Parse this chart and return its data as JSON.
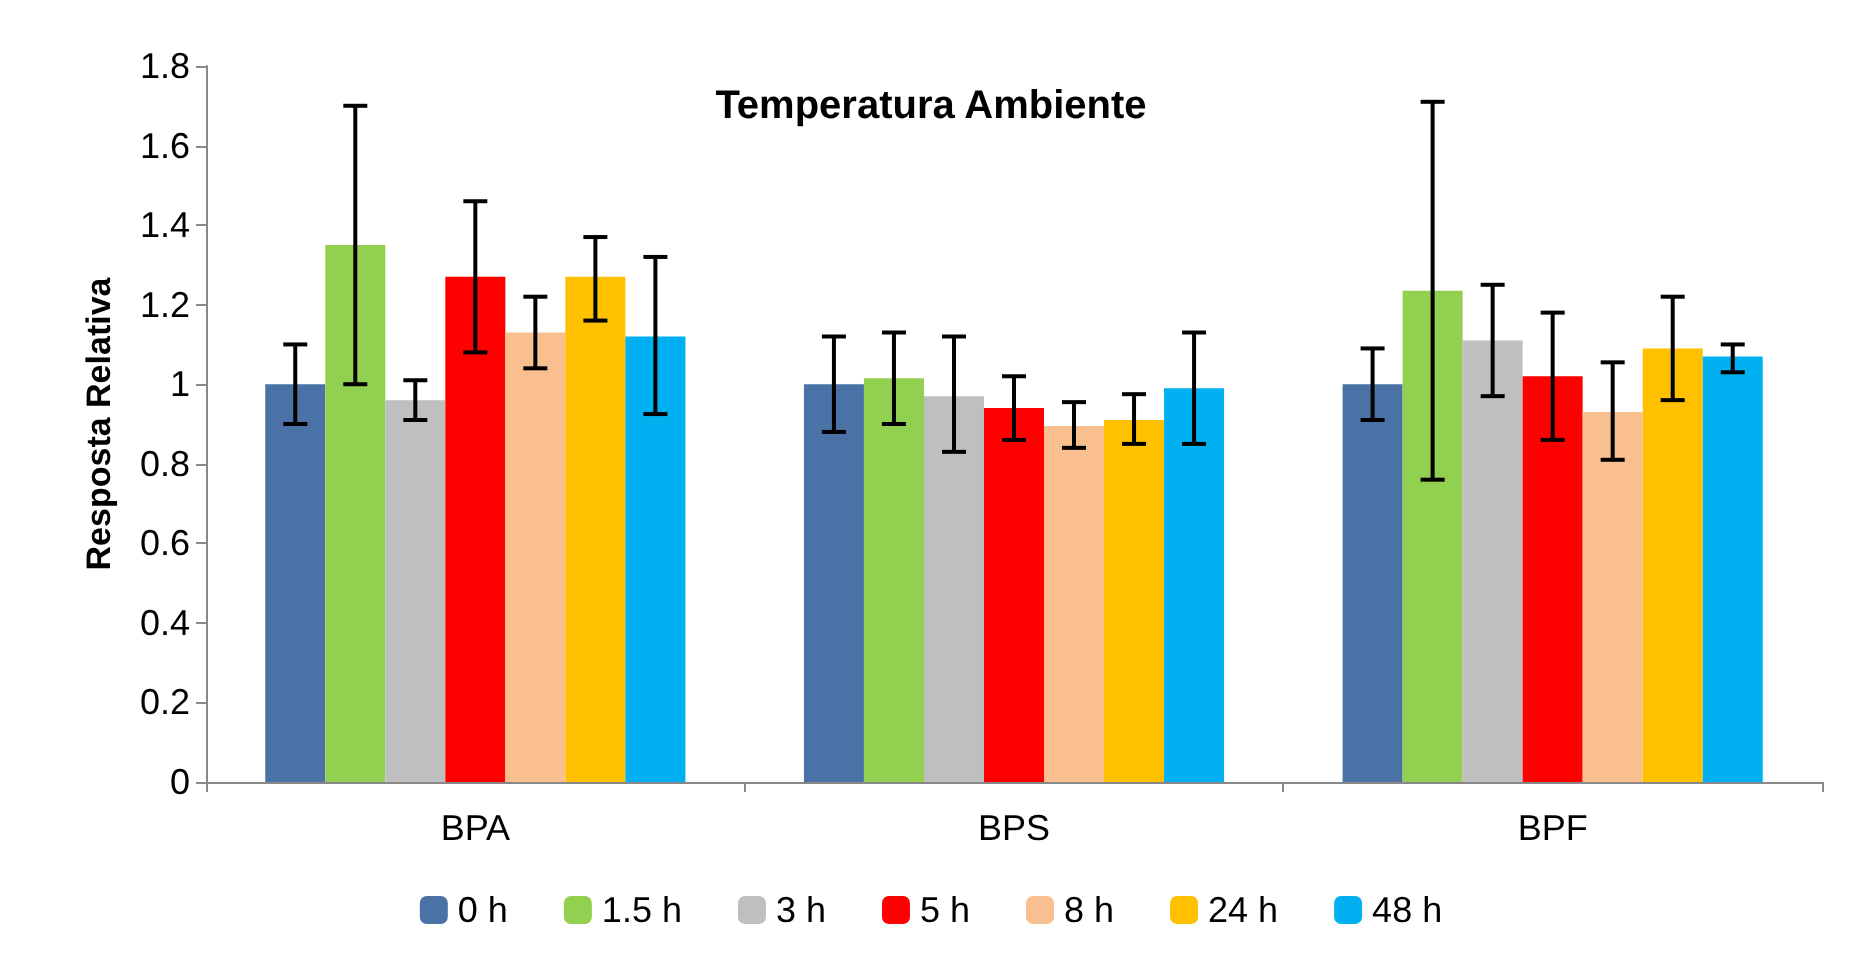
{
  "chart_data": {
    "type": "bar",
    "title": "Temperatura Ambiente",
    "ylabel": "Resposta Relativa",
    "categories": [
      "BPA",
      "BPS",
      "BPF"
    ],
    "series": [
      {
        "name": "0 h",
        "color": "#4a72a6",
        "values": [
          1.0,
          1.0,
          1.0
        ],
        "errors": [
          [
            0.9,
            1.1
          ],
          [
            0.88,
            1.12
          ],
          [
            0.91,
            1.09
          ]
        ]
      },
      {
        "name": "1.5 h",
        "color": "#92d050",
        "values": [
          1.35,
          1.015,
          1.235
        ],
        "errors": [
          [
            1.0,
            1.7
          ],
          [
            0.9,
            1.13
          ],
          [
            0.76,
            1.71
          ]
        ]
      },
      {
        "name": "3 h",
        "color": "#bfbfbf",
        "values": [
          0.96,
          0.97,
          1.11
        ],
        "errors": [
          [
            0.91,
            1.01
          ],
          [
            0.83,
            1.12
          ],
          [
            0.97,
            1.25
          ]
        ]
      },
      {
        "name": "5 h",
        "color": "#ff0000",
        "values": [
          1.27,
          0.94,
          1.02
        ],
        "errors": [
          [
            1.08,
            1.46
          ],
          [
            0.86,
            1.02
          ],
          [
            0.86,
            1.18
          ]
        ]
      },
      {
        "name": "8 h",
        "color": "#f9bf8f",
        "values": [
          1.13,
          0.895,
          0.93
        ],
        "errors": [
          [
            1.04,
            1.22
          ],
          [
            0.84,
            0.955
          ],
          [
            0.81,
            1.055
          ]
        ]
      },
      {
        "name": "24 h",
        "color": "#ffc000",
        "values": [
          1.27,
          0.91,
          1.09
        ],
        "errors": [
          [
            1.16,
            1.37
          ],
          [
            0.85,
            0.975
          ],
          [
            0.96,
            1.22
          ]
        ]
      },
      {
        "name": "48 h",
        "color": "#00b0f0",
        "values": [
          1.12,
          0.99,
          1.07
        ],
        "errors": [
          [
            0.925,
            1.32
          ],
          [
            0.85,
            1.13
          ],
          [
            1.03,
            1.1
          ]
        ]
      }
    ],
    "ylim": [
      0,
      1.8
    ],
    "yticks": [
      0,
      0.2,
      0.4,
      0.6,
      0.8,
      1,
      1.2,
      1.4,
      1.6,
      1.8
    ],
    "legend": "bottom",
    "grid": false
  }
}
